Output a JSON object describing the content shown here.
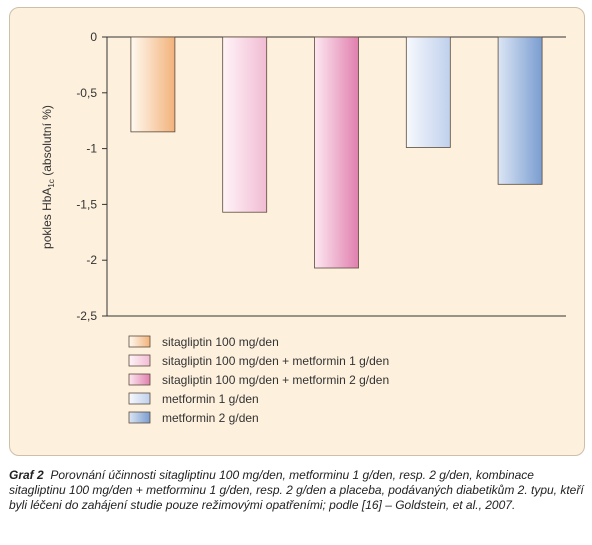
{
  "chart_data": {
    "type": "bar",
    "title": "",
    "xlabel": "",
    "ylabel": "pokles HbA1c (absolutní %)",
    "ylabel_parts": [
      "pokles HbA",
      "1c",
      " (absolutní %)"
    ],
    "ylim": [
      -2.5,
      0
    ],
    "yticks": [
      0,
      -0.5,
      -1,
      -1.5,
      -2,
      -2.5
    ],
    "ytick_labels": [
      "0",
      "-0,5",
      "-1",
      "-1,5",
      "-2",
      "-2,5"
    ],
    "grid": false,
    "legend_position": "bottom-left",
    "series": [
      {
        "name": "sitagliptin 100 mg/den",
        "value": -0.85,
        "color_light": "#fffaf1",
        "color_dark": "#f2b27a"
      },
      {
        "name": "sitagliptin 100 mg/den + metformin 1 g/den",
        "value": -1.57,
        "color_light": "#fff4f8",
        "color_dark": "#f1bcd3"
      },
      {
        "name": "sitagliptin 100 mg/den + metformin 2 g/den",
        "value": -2.07,
        "color_light": "#fde8f1",
        "color_dark": "#e07fae"
      },
      {
        "name": "metformin 1 g/den",
        "value": -0.99,
        "color_light": "#f7f9fd",
        "color_dark": "#bfd0ec"
      },
      {
        "name": "metformin 2 g/den",
        "value": -1.32,
        "color_light": "#dbe5f4",
        "color_dark": "#7a9dd0"
      }
    ]
  },
  "caption": {
    "lead": "Graf 2",
    "text": "Porovnání účinnosti sitagliptinu 100 mg/den, metforminu 1 g/den, resp. 2 g/den, kombinace sitagliptinu 100 mg/den + metforminu 1 g/den, resp. 2 g/den a placeba, podávaných diabetikům 2. typu, kteří byli léčeni do zahájení studie pouze režimovými opatřeními; podle [16] – Goldstein, et al., 2007."
  },
  "colors": {
    "panel_bg": "#fdf0dd",
    "axis": "#333333",
    "bar_stroke": "#5a4a3a"
  }
}
